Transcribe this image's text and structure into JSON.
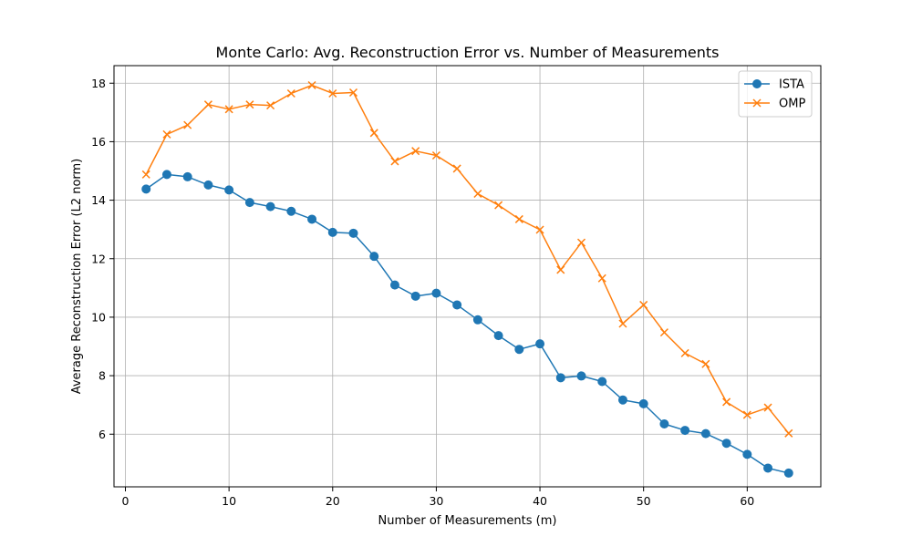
{
  "chart_data": {
    "type": "line",
    "title": "Monte Carlo: Avg. Reconstruction Error vs. Number of Measurements",
    "xlabel": "Number of Measurements (m)",
    "ylabel": "Average Reconstruction Error (L2 norm)",
    "xlim": [
      -1.1,
      67.1
    ],
    "ylim": [
      4.2,
      18.6
    ],
    "xticks": [
      0,
      10,
      20,
      30,
      40,
      50,
      60
    ],
    "yticks": [
      6,
      8,
      10,
      12,
      14,
      16,
      18
    ],
    "grid": true,
    "legend": "top-right",
    "x": [
      2,
      4,
      6,
      8,
      10,
      12,
      14,
      16,
      18,
      20,
      22,
      24,
      26,
      28,
      30,
      32,
      34,
      36,
      38,
      40,
      42,
      44,
      46,
      48,
      50,
      52,
      54,
      56,
      58,
      60,
      62,
      64
    ],
    "series": [
      {
        "name": "ISTA",
        "color": "#1f77b4",
        "marker": "circle",
        "values": [
          14.38,
          14.88,
          14.8,
          14.52,
          14.35,
          13.92,
          13.78,
          13.62,
          13.35,
          12.9,
          12.87,
          12.08,
          11.1,
          10.72,
          10.82,
          10.42,
          9.91,
          9.37,
          8.9,
          9.09,
          7.93,
          7.99,
          7.8,
          7.17,
          7.04,
          6.35,
          6.13,
          6.02,
          5.69,
          5.31,
          4.84,
          4.67
        ]
      },
      {
        "name": "OMP",
        "color": "#ff7f0e",
        "marker": "x",
        "values": [
          14.88,
          16.25,
          16.57,
          17.27,
          17.11,
          17.27,
          17.24,
          17.65,
          17.93,
          17.65,
          17.68,
          16.3,
          15.33,
          15.68,
          15.53,
          15.08,
          14.22,
          13.83,
          13.35,
          12.99,
          11.62,
          12.55,
          11.33,
          9.78,
          10.42,
          9.48,
          8.77,
          8.4,
          7.1,
          6.66,
          6.91,
          6.03
        ]
      }
    ]
  }
}
